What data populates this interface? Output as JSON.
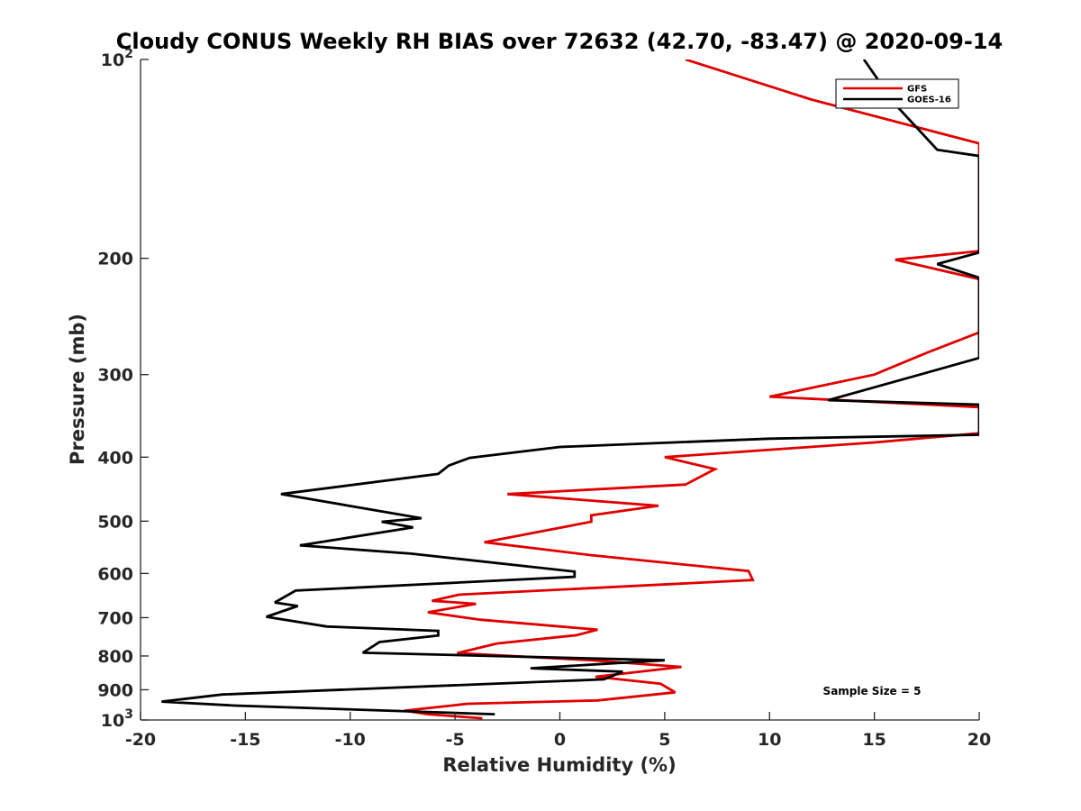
{
  "chart_data": {
    "type": "line",
    "title": "Cloudy CONUS Weekly RH BIAS over 72632 (42.70, -83.47) @ 2020-09-14",
    "xlabel": "Relative Humidity (%)",
    "ylabel": "Pressure (mb)",
    "xlim": [
      -20,
      20
    ],
    "ylim": [
      100,
      1000
    ],
    "y_scale": "log",
    "y_reversed": true,
    "grid": false,
    "legend_position": "top-right",
    "x_ticks": [
      {
        "value": -20,
        "label": "-20"
      },
      {
        "value": -15,
        "label": "-15"
      },
      {
        "value": -10,
        "label": "-10"
      },
      {
        "value": -5,
        "label": "-5"
      },
      {
        "value": 0,
        "label": "0"
      },
      {
        "value": 5,
        "label": "5"
      },
      {
        "value": 10,
        "label": "10"
      },
      {
        "value": 15,
        "label": "15"
      },
      {
        "value": 20,
        "label": "20"
      }
    ],
    "y_ticks": [
      {
        "value": 100,
        "base": "10",
        "exp": "2"
      },
      {
        "value": 200,
        "base": "200",
        "exp": ""
      },
      {
        "value": 300,
        "base": "300",
        "exp": ""
      },
      {
        "value": 400,
        "base": "400",
        "exp": ""
      },
      {
        "value": 500,
        "base": "500",
        "exp": ""
      },
      {
        "value": 600,
        "base": "600",
        "exp": ""
      },
      {
        "value": 700,
        "base": "700",
        "exp": ""
      },
      {
        "value": 800,
        "base": "800",
        "exp": ""
      },
      {
        "value": 900,
        "base": "900",
        "exp": ""
      },
      {
        "value": 1000,
        "base": "10",
        "exp": "3"
      }
    ],
    "series": [
      {
        "name": "GFS",
        "color": "#e00000",
        "points": [
          [
            6,
            100
          ],
          [
            12,
            115
          ],
          [
            20,
            134
          ],
          [
            20,
            195
          ],
          [
            16,
            201
          ],
          [
            20,
            215
          ],
          [
            20,
            259
          ],
          [
            17.5,
            278
          ],
          [
            15,
            300
          ],
          [
            10,
            324
          ],
          [
            20,
            336
          ],
          [
            20,
            368
          ],
          [
            15,
            380
          ],
          [
            5,
            400
          ],
          [
            7.4,
            417
          ],
          [
            6,
            440
          ],
          [
            -2.5,
            455
          ],
          [
            4.7,
            474
          ],
          [
            1.5,
            490
          ],
          [
            1.5,
            501
          ],
          [
            -3.6,
            538
          ],
          [
            1.5,
            563
          ],
          [
            9,
            595
          ],
          [
            9.2,
            614
          ],
          [
            -4.8,
            646
          ],
          [
            -6.1,
            660
          ],
          [
            -4,
            667
          ],
          [
            -6.3,
            687
          ],
          [
            -3.8,
            705
          ],
          [
            1.8,
            730
          ],
          [
            0.8,
            744
          ],
          [
            -3,
            766
          ],
          [
            -4.9,
            792
          ],
          [
            1.5,
            812
          ],
          [
            5.8,
            831
          ],
          [
            1.7,
            860
          ],
          [
            4.8,
            881
          ],
          [
            5.5,
            908
          ],
          [
            1.8,
            934
          ],
          [
            -4.4,
            945
          ],
          [
            -7.4,
            968
          ],
          [
            -6.3,
            980
          ],
          [
            -3.7,
            994
          ]
        ]
      },
      {
        "name": "GOES-16",
        "color": "#000000",
        "points": [
          [
            14.5,
            100
          ],
          [
            16,
            117
          ],
          [
            18,
            137
          ],
          [
            20,
            140
          ],
          [
            20,
            196
          ],
          [
            18,
            204
          ],
          [
            20,
            214
          ],
          [
            20,
            283
          ],
          [
            17,
            301
          ],
          [
            12.8,
            328
          ],
          [
            20,
            333
          ],
          [
            20,
            370
          ],
          [
            10,
            375
          ],
          [
            0,
            386
          ],
          [
            -4.3,
            401
          ],
          [
            -5.3,
            412
          ],
          [
            -5.8,
            424
          ],
          [
            -13.3,
            455
          ],
          [
            -6.6,
            495
          ],
          [
            -8.5,
            501
          ],
          [
            -7,
            511
          ],
          [
            -12.4,
            544
          ],
          [
            -7.1,
            560
          ],
          [
            0.7,
            596
          ],
          [
            0.7,
            607
          ],
          [
            -12.6,
            637
          ],
          [
            -13.6,
            664
          ],
          [
            -12.5,
            672
          ],
          [
            -14,
            698
          ],
          [
            -11.1,
            722
          ],
          [
            -5.8,
            733
          ],
          [
            -5.8,
            745
          ],
          [
            -8.6,
            762
          ],
          [
            -9.4,
            791
          ],
          [
            5,
            812
          ],
          [
            -1.4,
            835
          ],
          [
            3,
            845
          ],
          [
            2.1,
            868
          ],
          [
            -16.1,
            915
          ],
          [
            -19,
            938
          ],
          [
            -15.5,
            951
          ],
          [
            -3.1,
            980
          ]
        ]
      }
    ],
    "annotations": [
      {
        "text": "Sample Size = 5",
        "x": 15,
        "y": 900
      }
    ]
  }
}
